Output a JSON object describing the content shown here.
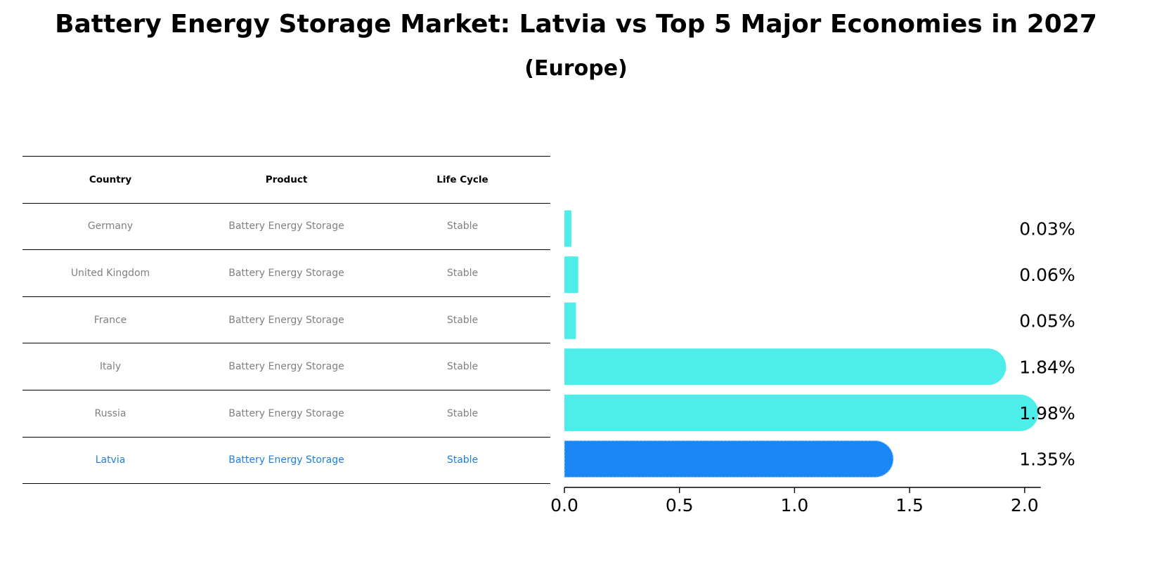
{
  "title": "Battery Energy Storage Market: Latvia vs Top 5 Major Economies in 2027",
  "subtitle": "(Europe)",
  "table": {
    "headers": [
      "Country",
      "Product",
      "Life Cycle"
    ],
    "rows": [
      {
        "country": "Germany",
        "product": "Battery Energy Storage",
        "life_cycle": "Stable"
      },
      {
        "country": "United Kingdom",
        "product": "Battery Energy Storage",
        "life_cycle": "Stable"
      },
      {
        "country": "France",
        "product": "Battery Energy Storage",
        "life_cycle": "Stable"
      },
      {
        "country": "Italy",
        "product": "Battery Energy Storage",
        "life_cycle": "Stable"
      },
      {
        "country": "Russia",
        "product": "Battery Energy Storage",
        "life_cycle": "Stable"
      },
      {
        "country": "Latvia",
        "product": "Battery Energy Storage",
        "life_cycle": "Stable"
      }
    ]
  },
  "chart_data": {
    "type": "bar",
    "orientation": "horizontal",
    "title": "Battery Energy Storage Market: Latvia vs Top 5 Major Economies in 2027",
    "subtitle": "(Europe)",
    "categories": [
      "Germany",
      "United Kingdom",
      "France",
      "Italy",
      "Russia",
      "Latvia"
    ],
    "values": [
      0.03,
      0.06,
      0.05,
      1.84,
      1.98,
      1.35
    ],
    "value_labels": [
      "0.03%",
      "0.06%",
      "0.05%",
      "1.84%",
      "1.98%",
      "1.35%"
    ],
    "highlight": "Latvia",
    "colors": {
      "default": "#4deeea",
      "highlight": "#1a87f5",
      "highlight_text": "#1f7fdc",
      "muted_text": "#808080"
    },
    "xlim": [
      0,
      2.07
    ],
    "xticks": [
      0.0,
      0.5,
      1.0,
      1.5,
      2.0
    ],
    "xtick_labels": [
      "0.0",
      "0.5",
      "1.0",
      "1.5",
      "2.0"
    ],
    "xlabel": "",
    "ylabel": ""
  }
}
